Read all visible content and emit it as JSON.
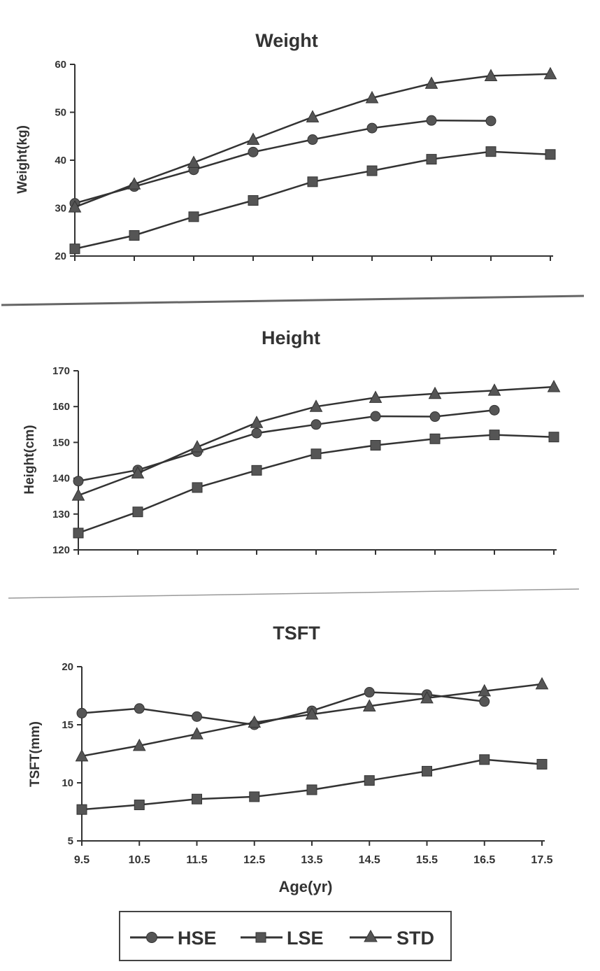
{
  "legend": {
    "placement": "bottom",
    "entries": [
      {
        "name": "HSE",
        "marker": "circle"
      },
      {
        "name": "LSE",
        "marker": "square"
      },
      {
        "name": "STD",
        "marker": "triangle"
      }
    ]
  },
  "colors": {
    "ink": "#333333",
    "marker": "#555555",
    "background": "#ffffff"
  },
  "chart_data": [
    {
      "type": "line",
      "title": "Weight",
      "xlabel": "",
      "ylabel": "Weight(kg)",
      "x": [
        9.5,
        10.5,
        11.5,
        12.5,
        13.5,
        14.5,
        15.5,
        16.5,
        17.5
      ],
      "ylim": [
        20,
        60
      ],
      "yticks": [
        20,
        30,
        40,
        50,
        60
      ],
      "grid": false,
      "series": [
        {
          "name": "HSE",
          "marker": "circle",
          "values": [
            31,
            34.5,
            38,
            41.7,
            44.3,
            46.7,
            48.3,
            48.2,
            null
          ]
        },
        {
          "name": "LSE",
          "marker": "square",
          "values": [
            21.5,
            24.3,
            28.2,
            31.6,
            35.5,
            37.8,
            40.2,
            41.8,
            41.2
          ]
        },
        {
          "name": "STD",
          "marker": "triangle",
          "values": [
            30.2,
            35,
            39.5,
            44.3,
            49,
            53,
            56,
            57.6,
            58
          ]
        }
      ]
    },
    {
      "type": "line",
      "title": "Height",
      "xlabel": "",
      "ylabel": "Height(cm)",
      "x": [
        9.5,
        10.5,
        11.5,
        12.5,
        13.5,
        14.5,
        15.5,
        16.5,
        17.5
      ],
      "ylim": [
        120,
        170
      ],
      "yticks": [
        120,
        130,
        140,
        150,
        160,
        170
      ],
      "grid": false,
      "series": [
        {
          "name": "HSE",
          "marker": "circle",
          "values": [
            139.2,
            142.3,
            147.4,
            152.6,
            155,
            157.3,
            157.2,
            159,
            null
          ]
        },
        {
          "name": "LSE",
          "marker": "square",
          "values": [
            124.7,
            130.6,
            137.4,
            142.2,
            146.8,
            149.2,
            151,
            152.1,
            151.5
          ]
        },
        {
          "name": "STD",
          "marker": "triangle",
          "values": [
            135.2,
            141.4,
            148.7,
            155.5,
            160,
            162.5,
            163.6,
            164.5,
            165.5
          ]
        }
      ]
    },
    {
      "type": "line",
      "title": "TSFT",
      "xlabel": "Age(yr)",
      "ylabel": "TSFT(mm)",
      "x": [
        9.5,
        10.5,
        11.5,
        12.5,
        13.5,
        14.5,
        15.5,
        16.5,
        17.5
      ],
      "xtick_labels": [
        "9.5",
        "10.5",
        "11.5",
        "12.5",
        "13.5",
        "14.5",
        "15.5",
        "16.5",
        "17.5"
      ],
      "ylim": [
        5,
        20
      ],
      "yticks": [
        5,
        10,
        15,
        20
      ],
      "grid": false,
      "series": [
        {
          "name": "HSE",
          "marker": "circle",
          "values": [
            16,
            16.4,
            15.7,
            15,
            16.2,
            17.8,
            17.6,
            17,
            null
          ]
        },
        {
          "name": "LSE",
          "marker": "square",
          "values": [
            7.7,
            8.1,
            8.6,
            8.8,
            9.4,
            10.2,
            11,
            12,
            11.6
          ]
        },
        {
          "name": "STD",
          "marker": "triangle",
          "values": [
            12.3,
            13.2,
            14.2,
            15.2,
            15.9,
            16.6,
            17.3,
            17.9,
            18.5
          ]
        }
      ]
    }
  ]
}
